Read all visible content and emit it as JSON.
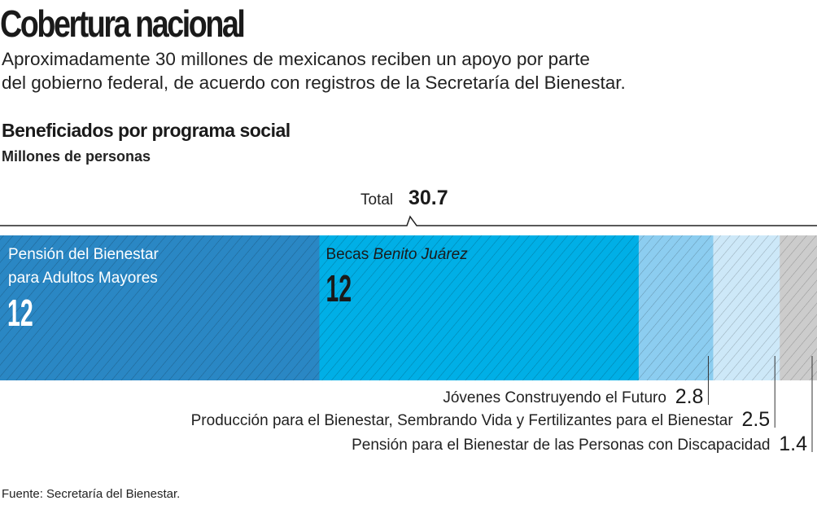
{
  "title": "Cobertura nacional",
  "subtitle_lines": [
    "Aproximadamente 30 millones de mexicanos reciben un apoyo por parte",
    "del gobierno federal, de acuerdo con registros de la Secretaría del Bienestar."
  ],
  "source": "Fuente: Secretaría del Bienestar.",
  "chart_data": {
    "type": "bar",
    "subtype": "stacked-horizontal",
    "title": "Beneficiados por programa social",
    "unit": "Millones de personas",
    "total_label": "Total",
    "total": "30.7",
    "total_value": 30.7,
    "segments": [
      {
        "name_lines": [
          "Pensión del Bienestar",
          "para Adultos Mayores"
        ],
        "value": 12,
        "label": "12",
        "color": "#2a87c4"
      },
      {
        "name_lines": [
          "Becas ",
          "Benito Juárez"
        ],
        "value": 12,
        "label": "12",
        "color": "#00afe6"
      },
      {
        "name_lines": [
          "Jóvenes Construyendo el Futuro"
        ],
        "value": 2.8,
        "label": "2.8",
        "color": "#8ccdf0"
      },
      {
        "name_lines": [
          "Producción para el Bienestar, Sembrando Vida y Fertilizantes para el Bienestar"
        ],
        "value": 2.5,
        "label": "2.5",
        "color": "#cde8f8"
      },
      {
        "name_lines": [
          "Pensión para el Bienestar de las Personas con Discapacidad"
        ],
        "value": 1.4,
        "label": "1.4",
        "color": "#cccccc"
      }
    ]
  }
}
